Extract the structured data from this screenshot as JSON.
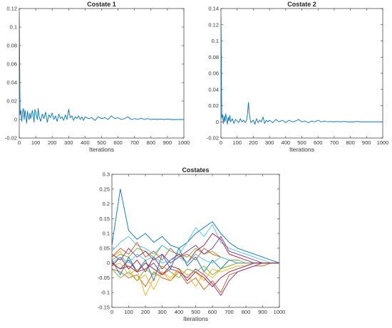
{
  "chart_data": [
    {
      "type": "line",
      "title": "Costate 1",
      "xlabel": "Iterations",
      "ylabel": "",
      "xlim": [
        0,
        1000
      ],
      "ylim": [
        -0.02,
        0.12
      ],
      "xticks": [
        "0",
        "100",
        "200",
        "300",
        "400",
        "500",
        "600",
        "700",
        "800",
        "900",
        "1000"
      ],
      "yticks": [
        "-0.02",
        "0",
        "0.02",
        "0.04",
        "0.06",
        "0.08",
        "0.1",
        "0.12"
      ],
      "grid": false,
      "color": "#0072BD",
      "series": [
        {
          "x": [
            0,
            5,
            10,
            15,
            20,
            25,
            30,
            35,
            40,
            45,
            50,
            55,
            60,
            65,
            70,
            80,
            90,
            95,
            100,
            110,
            115,
            120,
            130,
            140,
            150,
            160,
            170,
            180,
            190,
            200,
            210,
            220,
            230,
            240,
            250,
            260,
            270,
            280,
            290,
            300,
            310,
            320,
            330,
            340,
            350,
            360,
            370,
            380,
            390,
            400,
            420,
            440,
            460,
            480,
            500,
            520,
            540,
            560,
            580,
            600,
            620,
            640,
            660,
            680,
            700,
            720,
            740,
            760,
            780,
            800,
            820,
            840,
            860,
            880,
            900,
            920,
            940,
            960,
            980,
            1000
          ],
          "y": [
            0.115,
            0.005,
            0.01,
            -0.002,
            0.008,
            0.012,
            0.0,
            0.01,
            0.004,
            -0.004,
            0.009,
            0.003,
            0.0,
            0.007,
            0.001,
            0.01,
            -0.003,
            0.011,
            0.008,
            0.0,
            0.012,
            0.004,
            -0.002,
            0.006,
            0.001,
            0.008,
            -0.003,
            0.005,
            0.002,
            0.007,
            0.0,
            0.004,
            -0.002,
            0.006,
            0.001,
            0.003,
            -0.001,
            0.005,
            0.0,
            0.011,
            0.002,
            0.004,
            -0.001,
            0.003,
            0.001,
            0.004,
            0.0,
            0.003,
            -0.001,
            0.003,
            0.001,
            0.002,
            -0.001,
            0.003,
            0.001,
            0.002,
            0.0,
            0.004,
            0.001,
            0.002,
            0.0,
            0.001,
            0.003,
            0.0,
            0.001,
            0.0,
            0.0015,
            0.0,
            0.001,
            0.0,
            0.0005,
            0.0,
            0.0005,
            0.0,
            0.0005,
            0.0,
            0.0,
            0.0,
            0.0,
            0.0
          ]
        }
      ]
    },
    {
      "type": "line",
      "title": "Costate 2",
      "xlabel": "Iterations",
      "ylabel": "",
      "xlim": [
        0,
        1000
      ],
      "ylim": [
        -0.02,
        0.14
      ],
      "xticks": [
        "0",
        "100",
        "200",
        "300",
        "400",
        "500",
        "600",
        "700",
        "800",
        "900",
        "1000"
      ],
      "yticks": [
        "-0.02",
        "0",
        "0.02",
        "0.04",
        "0.06",
        "0.08",
        "0.1",
        "0.12",
        "0.14"
      ],
      "grid": false,
      "color": "#0072BD",
      "series": [
        {
          "x": [
            0,
            5,
            10,
            15,
            20,
            25,
            30,
            35,
            40,
            45,
            50,
            55,
            60,
            70,
            80,
            90,
            100,
            110,
            120,
            130,
            140,
            150,
            160,
            165,
            170,
            175,
            180,
            185,
            190,
            200,
            210,
            220,
            230,
            240,
            250,
            260,
            270,
            280,
            290,
            300,
            320,
            340,
            360,
            380,
            400,
            420,
            440,
            460,
            480,
            500,
            520,
            540,
            560,
            580,
            600,
            620,
            640,
            660,
            680,
            700,
            720,
            740,
            760,
            780,
            800,
            820,
            840,
            860,
            880,
            900,
            920,
            940,
            960,
            980,
            1000
          ],
          "y": [
            0.13,
            0.005,
            0.009,
            -0.002,
            0.007,
            0.0,
            0.01,
            0.003,
            -0.003,
            0.006,
            0.001,
            0.008,
            0.0,
            0.004,
            -0.002,
            0.003,
            0.001,
            -0.001,
            0.004,
            0.0,
            0.002,
            -0.001,
            0.003,
            0.012,
            0.024,
            0.01,
            0.004,
            -0.001,
            0.0,
            0.002,
            -0.003,
            0.004,
            -0.001,
            0.002,
            0.0,
            0.006,
            -0.002,
            0.002,
            0.0,
            0.002,
            -0.001,
            0.003,
            0.0,
            0.002,
            -0.001,
            0.002,
            0.0,
            0.001,
            0.003,
            0.0,
            0.001,
            -0.001,
            0.001,
            0.0,
            0.002,
            0.0,
            0.001,
            0.0,
            0.0005,
            0.0,
            0.0005,
            0.0,
            0.0005,
            0.0,
            0.0,
            0.0,
            0.0005,
            0.0,
            0.0,
            0.0,
            0.0,
            0.0,
            0.0,
            0.0,
            0.0
          ]
        }
      ]
    },
    {
      "type": "line",
      "title": "Costates",
      "xlabel": "Iterations",
      "ylabel": "",
      "xlim": [
        0,
        1000
      ],
      "ylim": [
        -0.15,
        0.3
      ],
      "xticks": [
        "0",
        "100",
        "200",
        "300",
        "400",
        "500",
        "600",
        "700",
        "800",
        "900",
        "1000"
      ],
      "yticks": [
        "-0.15",
        "-0.1",
        "-0.05",
        "0",
        "0.05",
        "0.1",
        "0.15",
        "0.2",
        "0.25",
        "0.3"
      ],
      "grid": false,
      "x": [
        0,
        50,
        100,
        150,
        200,
        250,
        300,
        350,
        400,
        450,
        500,
        550,
        600,
        650,
        700,
        750,
        800,
        850,
        900,
        950,
        1000
      ],
      "series": [
        {
          "color": "#0072BD",
          "values": [
            0.06,
            0.25,
            0.11,
            0.08,
            0.1,
            0.07,
            0.09,
            0.06,
            0.05,
            0.07,
            0.1,
            0.12,
            0.14,
            0.1,
            0.07,
            0.05,
            0.04,
            0.03,
            0.02,
            0.01,
            0.0
          ]
        },
        {
          "color": "#D95319",
          "values": [
            -0.02,
            -0.03,
            -0.05,
            -0.04,
            -0.08,
            -0.03,
            -0.05,
            -0.06,
            -0.03,
            -0.07,
            -0.05,
            -0.09,
            -0.06,
            -0.1,
            -0.04,
            -0.03,
            -0.02,
            -0.01,
            -0.01,
            0.0,
            0.0
          ]
        },
        {
          "color": "#EDB120",
          "values": [
            0.02,
            0.04,
            -0.02,
            -0.06,
            -0.04,
            -0.09,
            -0.03,
            -0.05,
            -0.02,
            -0.04,
            -0.03,
            -0.06,
            -0.02,
            -0.03,
            -0.02,
            -0.01,
            -0.01,
            0.0,
            0.0,
            0.0,
            0.0
          ]
        },
        {
          "color": "#7E2F8E",
          "values": [
            0.0,
            -0.02,
            0.01,
            -0.03,
            -0.02,
            0.0,
            -0.04,
            -0.02,
            -0.03,
            -0.05,
            -0.02,
            -0.04,
            -0.07,
            -0.11,
            -0.06,
            -0.03,
            -0.02,
            -0.01,
            0.0,
            0.0,
            0.0
          ]
        },
        {
          "color": "#77AC30",
          "values": [
            0.01,
            0.03,
            0.02,
            0.05,
            0.04,
            0.02,
            0.06,
            0.04,
            0.03,
            0.02,
            0.05,
            0.03,
            0.04,
            0.02,
            0.01,
            0.01,
            0.0,
            0.0,
            0.0,
            0.0,
            0.0
          ]
        },
        {
          "color": "#4DBEEE",
          "values": [
            0.04,
            0.07,
            0.09,
            0.06,
            0.05,
            0.03,
            0.06,
            0.04,
            0.03,
            0.07,
            0.12,
            0.09,
            0.13,
            0.07,
            0.05,
            0.04,
            0.03,
            0.02,
            0.01,
            0.0,
            0.0
          ]
        },
        {
          "color": "#A2142F",
          "values": [
            -0.01,
            0.02,
            -0.02,
            0.01,
            -0.03,
            0.02,
            -0.02,
            0.01,
            0.03,
            0.0,
            0.04,
            0.06,
            0.1,
            0.08,
            0.03,
            0.02,
            0.01,
            0.0,
            0.0,
            0.0,
            0.0
          ]
        },
        {
          "color": "#0072BD",
          "values": [
            0.01,
            -0.04,
            0.02,
            -0.03,
            0.01,
            -0.06,
            0.03,
            -0.02,
            0.05,
            -0.01,
            0.02,
            -0.03,
            0.01,
            -0.02,
            0.01,
            0.0,
            0.0,
            0.0,
            0.0,
            0.0,
            0.0
          ]
        },
        {
          "color": "#D95319",
          "values": [
            0.02,
            0.05,
            0.03,
            0.07,
            0.02,
            0.04,
            0.01,
            0.05,
            0.02,
            0.03,
            0.01,
            0.05,
            0.03,
            0.02,
            0.01,
            0.0,
            0.0,
            0.0,
            0.0,
            0.0,
            0.0
          ]
        },
        {
          "color": "#EDB120",
          "values": [
            -0.01,
            0.0,
            -0.04,
            -0.02,
            -0.11,
            -0.05,
            -0.03,
            -0.06,
            -0.02,
            -0.04,
            -0.08,
            -0.03,
            -0.05,
            -0.02,
            -0.01,
            0.0,
            0.0,
            0.0,
            0.0,
            0.0,
            0.0
          ]
        },
        {
          "color": "#7E2F8E",
          "values": [
            0.03,
            0.01,
            0.05,
            0.02,
            0.04,
            0.01,
            0.03,
            0.0,
            0.02,
            0.04,
            0.06,
            0.03,
            0.05,
            0.09,
            0.04,
            0.03,
            0.02,
            0.01,
            0.0,
            0.0,
            0.0
          ]
        },
        {
          "color": "#77AC30",
          "values": [
            -0.02,
            -0.05,
            -0.03,
            -0.06,
            -0.02,
            -0.04,
            -0.01,
            -0.03,
            -0.05,
            -0.02,
            -0.03,
            -0.01,
            -0.04,
            -0.02,
            -0.01,
            0.0,
            0.0,
            0.0,
            0.0,
            0.0,
            0.0
          ]
        },
        {
          "color": "#4DBEEE",
          "values": [
            0.0,
            0.02,
            0.0,
            0.03,
            0.01,
            0.02,
            0.0,
            0.01,
            0.02,
            0.0,
            0.03,
            0.01,
            0.0,
            0.02,
            0.01,
            0.0,
            0.0,
            0.0,
            0.0,
            0.0,
            0.0
          ]
        },
        {
          "color": "#A2142F",
          "values": [
            0.0,
            -0.02,
            -0.01,
            -0.03,
            0.0,
            -0.02,
            -0.04,
            -0.01,
            -0.02,
            -0.06,
            -0.03,
            -0.05,
            -0.08,
            -0.05,
            -0.03,
            -0.02,
            -0.01,
            0.0,
            0.0,
            0.0,
            0.0
          ]
        }
      ]
    }
  ]
}
